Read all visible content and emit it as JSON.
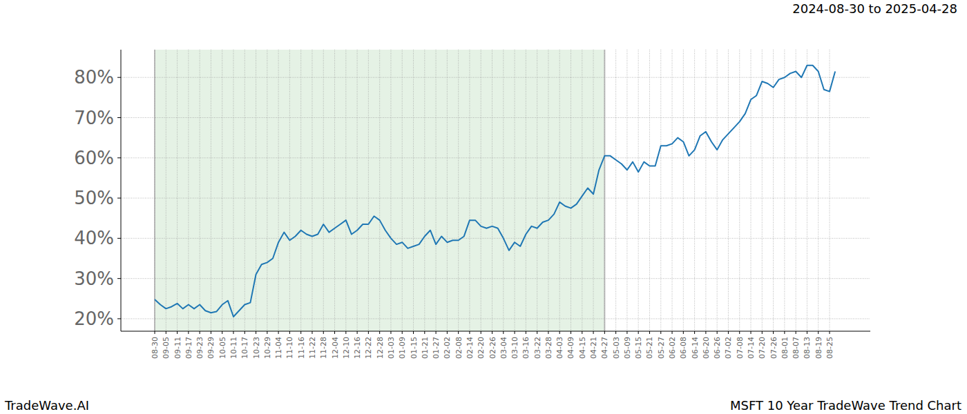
{
  "chart_data": {
    "type": "line",
    "title": "2024-08-30 to 2025-04-28",
    "annotations": [
      "TradeWave.AI",
      "MSFT 10 Year TradeWave Trend Chart"
    ],
    "categories": [
      "08-30",
      null,
      "09-05",
      null,
      "09-11",
      null,
      "09-17",
      null,
      "09-23",
      null,
      "09-29",
      null,
      "10-05",
      null,
      "10-11",
      null,
      "10-17",
      null,
      "10-23",
      null,
      "10-29",
      null,
      "11-04",
      null,
      "11-10",
      null,
      "11-16",
      null,
      "11-22",
      null,
      "11-28",
      null,
      "12-04",
      null,
      "12-10",
      null,
      "12-16",
      null,
      "12-22",
      null,
      "12-28",
      null,
      "01-03",
      null,
      "01-09",
      null,
      "01-15",
      null,
      "01-21",
      null,
      "01-27",
      null,
      "02-02",
      null,
      "02-08",
      null,
      "02-14",
      null,
      "02-20",
      null,
      "02-26",
      null,
      "03-04",
      null,
      "03-10",
      null,
      "03-16",
      null,
      "03-22",
      null,
      "03-28",
      null,
      "04-03",
      null,
      "04-09",
      null,
      "04-15",
      null,
      "04-21",
      null,
      "04-27",
      null,
      "05-03",
      null,
      "05-09",
      null,
      "05-15",
      null,
      "05-21",
      null,
      "05-27",
      null,
      "06-02",
      null,
      "06-08",
      null,
      "06-14",
      null,
      "06-20",
      null,
      "06-26",
      null,
      "07-02",
      null,
      "07-08",
      null,
      "07-14",
      null,
      "07-20",
      null,
      "07-26",
      null,
      "08-01",
      null,
      "08-07",
      null,
      "08-13",
      null,
      "08-19",
      null,
      "08-25",
      null
    ],
    "values": [
      24.8,
      23.5,
      22.5,
      23,
      23.8,
      22.5,
      23.5,
      22.5,
      23.5,
      22,
      21.5,
      21.8,
      23.5,
      24.5,
      20.5,
      22,
      23.5,
      24,
      31,
      33.5,
      34,
      35,
      39,
      41.5,
      39.5,
      40.5,
      42,
      41,
      40.5,
      41,
      43.5,
      41.5,
      42.5,
      43.5,
      44.5,
      41,
      42,
      43.5,
      43.5,
      45.5,
      44.5,
      42,
      40,
      38.5,
      39,
      37.5,
      38,
      38.5,
      40.5,
      42,
      38.5,
      40.5,
      39,
      39.5,
      39.5,
      40.5,
      44.5,
      44.5,
      43,
      42.5,
      43,
      42.5,
      40,
      37,
      39,
      38,
      41,
      43,
      42.5,
      44,
      44.5,
      46,
      49,
      48,
      47.5,
      48.5,
      50.5,
      52.5,
      51,
      57,
      60.5,
      60.5,
      59.5,
      58.5,
      57,
      59,
      56.5,
      59,
      58,
      58,
      63,
      63,
      63.5,
      65,
      64,
      60.5,
      62,
      65.5,
      66.5,
      64,
      62,
      64.5,
      66,
      67.5,
      69,
      71,
      74.5,
      75.5,
      79,
      78.5,
      77.5,
      79.5,
      80,
      81,
      81.5,
      80,
      83,
      83,
      81.5,
      77,
      76.5,
      81.5
    ],
    "color": "#1f77b4",
    "highlight": {
      "from": "08-30",
      "to": "04-27"
    },
    "ylim": [
      16.9,
      86.9
    ],
    "yticks": [
      {
        "value": 20,
        "label": "20%"
      },
      {
        "value": 30,
        "label": "30%"
      },
      {
        "value": 40,
        "label": "40%"
      },
      {
        "value": 50,
        "label": "50%"
      },
      {
        "value": 60,
        "label": "60%"
      },
      {
        "value": 70,
        "label": "70%"
      },
      {
        "value": 80,
        "label": "80%"
      }
    ],
    "grid": true
  }
}
